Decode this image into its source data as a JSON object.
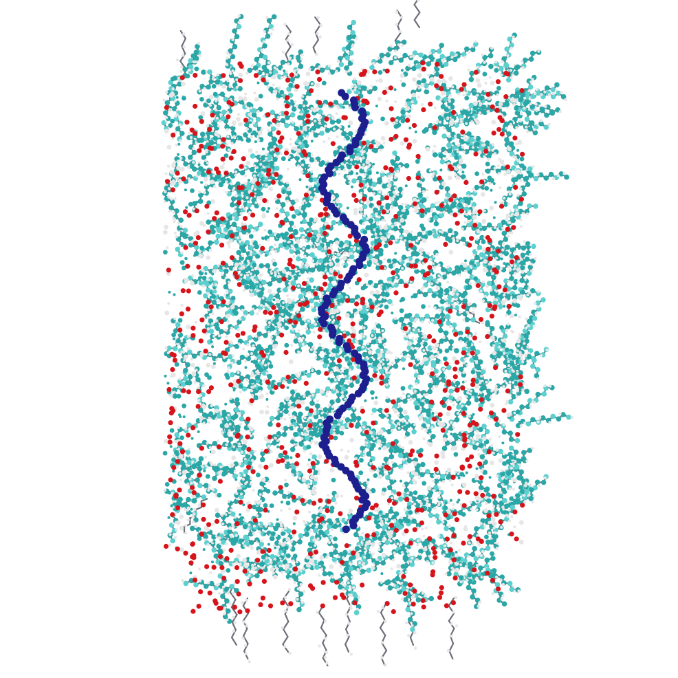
{
  "scene": {
    "background": "#ffffff",
    "style": "ball-and-stick molecular rendering",
    "colors": {
      "carbon": "#2aa7a7",
      "carbon_light": "#5cd0cf",
      "oxygen": "#d6141b",
      "hydrogen": "#e6e6e6",
      "nitrogen": "#1d1f8f",
      "bond_dark": "#6b6f78"
    },
    "atom_counts_shown": {
      "carbon": 3600,
      "oxygen": 620,
      "hydrogen": 2600,
      "nitrogen": 120
    }
  }
}
